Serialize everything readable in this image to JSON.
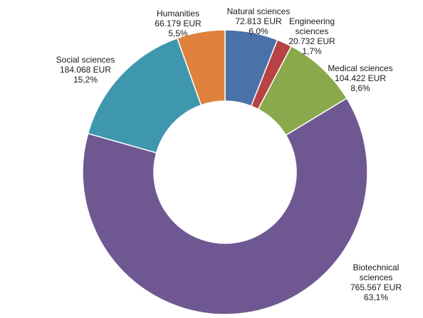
{
  "chart_data": {
    "type": "pie",
    "variant": "donut",
    "currency": "EUR",
    "slices": [
      {
        "name": "Natural sciences",
        "label_lines": [
          "Natural sciences"
        ],
        "amount": "72.813 EUR",
        "percent_text": "6,0%",
        "value": 72813,
        "color": "#4a72a8"
      },
      {
        "name": "Engineering sciences",
        "label_lines": [
          "Engineering",
          "sciences"
        ],
        "amount": "20.732 EUR",
        "percent_text": "1,7%",
        "value": 20732,
        "color": "#b84244"
      },
      {
        "name": "Medical sciences",
        "label_lines": [
          "Medical sciences"
        ],
        "amount": "104.422 EUR",
        "percent_text": "8,6%",
        "value": 104422,
        "color": "#8aa84c"
      },
      {
        "name": "Biotechnical sciences",
        "label_lines": [
          "Biotechnical",
          "sciences"
        ],
        "amount": "765.567 EUR",
        "percent_text": "63,1%",
        "value": 765567,
        "color": "#6f5892"
      },
      {
        "name": "Social sciences",
        "label_lines": [
          "Social sciences"
        ],
        "amount": "184.068 EUR",
        "percent_text": "15,2%",
        "value": 184068,
        "color": "#3f97ae"
      },
      {
        "name": "Humanities",
        "label_lines": [
          "Humanities"
        ],
        "amount": "66.179 EUR",
        "percent_text": "5,5%",
        "value": 66179,
        "color": "#e0823d"
      }
    ],
    "legend": "none",
    "title": ""
  }
}
